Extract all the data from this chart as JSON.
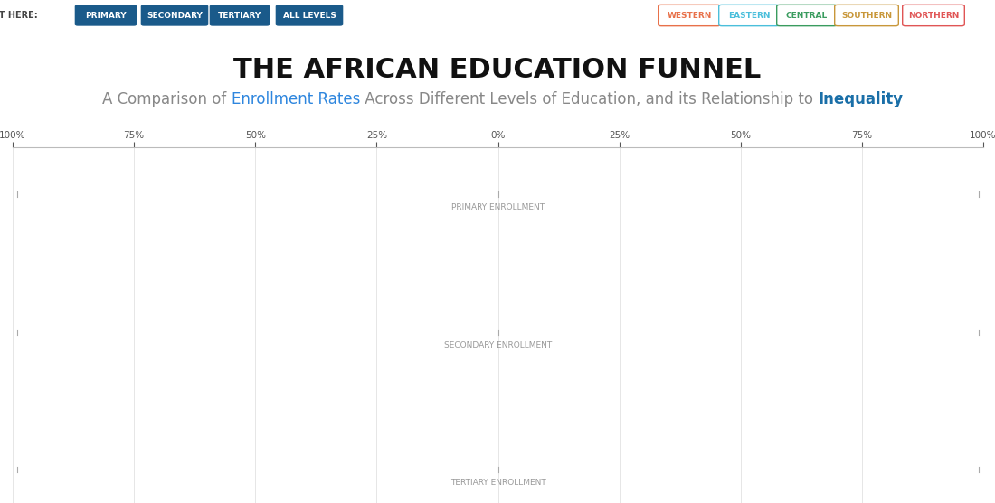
{
  "title": "THE AFRICAN EDUCATION FUNNEL",
  "subtitle_plain": "A Comparison of ",
  "subtitle_colored1": "Enrollment Rates",
  "subtitle_mid": " Across Different Levels of Education, and its Relationship to ",
  "subtitle_colored2": "Inequality",
  "subtitle_color1": "#2e86de",
  "subtitle_color2": "#1a6fa8",
  "subtitle_gray": "#888888",
  "background_color": "#ffffff",
  "title_fontsize": 22,
  "subtitle_fontsize": 12,
  "nav_buttons_left": [
    "PRIMARY",
    "SECONDARY",
    "TERTIARY",
    "ALL LEVELS"
  ],
  "nav_label": "START HERE:",
  "nav_button_color": "#1a5a8a",
  "nav_buttons_right": [
    "WESTERN",
    "EASTERN",
    "CENTRAL",
    "SOUTHERN",
    "NORTHERN"
  ],
  "nav_right_colors": [
    "#e8714a",
    "#4bbfdb",
    "#3a9c5f",
    "#c8973a",
    "#e05555"
  ],
  "axis_ticks": [
    "100%",
    "75%",
    "50%",
    "25%",
    "0%",
    "25%",
    "50%",
    "75%",
    "100%"
  ],
  "axis_tick_positions": [
    -100,
    -75,
    -50,
    -25,
    0,
    25,
    50,
    75,
    100
  ],
  "section_labels": [
    "PRIMARY ENROLLMENT",
    "SECONDARY ENROLLMENT",
    "TERTIARY ENROLLMENT"
  ],
  "tick_line_color": "#cccccc",
  "axis_line_color": "#bbbbbb",
  "label_color": "#999999",
  "label_fontsize": 6.5
}
